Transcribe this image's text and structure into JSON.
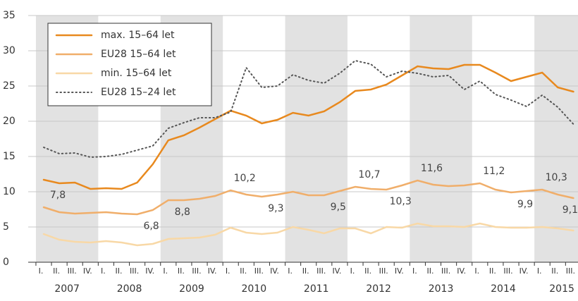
{
  "chart_data": {
    "type": "line",
    "categories": [
      "I.",
      "II.",
      "III.",
      "IV.",
      "I.",
      "II.",
      "III.",
      "IV.",
      "I.",
      "II.",
      "III.",
      "IV.",
      "I.",
      "II.",
      "III.",
      "IV.",
      "I.",
      "II.",
      "III.",
      "IV.",
      "I.",
      "II.",
      "III.",
      "IV.",
      "I.",
      "II.",
      "III.",
      "IV.",
      "I.",
      "II.",
      "III.",
      "IV.",
      "I.",
      "II.",
      "III."
    ],
    "years": [
      "2007",
      "2008",
      "2009",
      "2010",
      "2011",
      "2012",
      "2013",
      "2014",
      "2015"
    ],
    "ylim": [
      0,
      35
    ],
    "yticks": [
      0,
      5,
      10,
      15,
      20,
      25,
      30,
      35
    ],
    "legend": "top-left",
    "series": [
      {
        "name": "max. 15–64 let",
        "color": "#e8891e",
        "style": "solid",
        "values": [
          11.7,
          11.2,
          11.3,
          10.4,
          10.5,
          10.4,
          11.3,
          13.9,
          17.3,
          18.0,
          19.1,
          20.3,
          21.5,
          20.8,
          19.7,
          20.2,
          21.2,
          20.8,
          21.4,
          22.7,
          24.3,
          24.5,
          25.2,
          26.5,
          27.8,
          27.5,
          27.4,
          28.0,
          28.0,
          26.9,
          25.7,
          26.3,
          26.9,
          24.8,
          24.2
        ]
      },
      {
        "name": "EU28  15–64 let",
        "color": "#f0ae6a",
        "style": "solid",
        "values": [
          7.8,
          7.1,
          6.9,
          7.0,
          7.1,
          6.9,
          6.8,
          7.4,
          8.8,
          8.8,
          9.0,
          9.4,
          10.2,
          9.6,
          9.3,
          9.6,
          10.0,
          9.5,
          9.5,
          10.1,
          10.7,
          10.4,
          10.3,
          10.9,
          11.6,
          11.0,
          10.8,
          10.9,
          11.2,
          10.3,
          9.9,
          10.1,
          10.3,
          9.6,
          9.1
        ],
        "value_labels": [
          "7,8",
          null,
          null,
          null,
          null,
          null,
          "6,8",
          null,
          "8,8",
          null,
          null,
          null,
          "10,2",
          null,
          "9,3",
          null,
          null,
          null,
          "9,5",
          null,
          "10,7",
          null,
          "10,3",
          null,
          "11,6",
          null,
          null,
          null,
          "11,2",
          null,
          "9,9",
          null,
          "10,3",
          null,
          "9,1"
        ]
      },
      {
        "name": "min. 15–64 let",
        "color": "#f8d8a6",
        "style": "solid",
        "values": [
          4.0,
          3.2,
          2.9,
          2.8,
          3.0,
          2.8,
          2.4,
          2.6,
          3.3,
          3.4,
          3.5,
          3.9,
          4.9,
          4.2,
          4.0,
          4.2,
          5.0,
          4.6,
          4.1,
          4.8,
          4.8,
          4.1,
          5.0,
          4.9,
          5.5,
          5.1,
          5.1,
          5.0,
          5.5,
          5.0,
          4.9,
          4.9,
          5.0,
          4.8,
          4.5
        ]
      },
      {
        "name": "EU28  15–24 let",
        "color": "#555555",
        "style": "dotted",
        "values": [
          16.3,
          15.4,
          15.5,
          14.9,
          15.0,
          15.3,
          15.9,
          16.5,
          19.0,
          19.8,
          20.5,
          20.5,
          21.3,
          27.6,
          24.8,
          25.0,
          26.6,
          25.8,
          25.4,
          26.8,
          28.6,
          28.1,
          26.3,
          27.1,
          26.8,
          26.3,
          26.5,
          24.5,
          25.7,
          23.8,
          23.0,
          22.1,
          23.7,
          22.0,
          19.6
        ]
      }
    ]
  }
}
